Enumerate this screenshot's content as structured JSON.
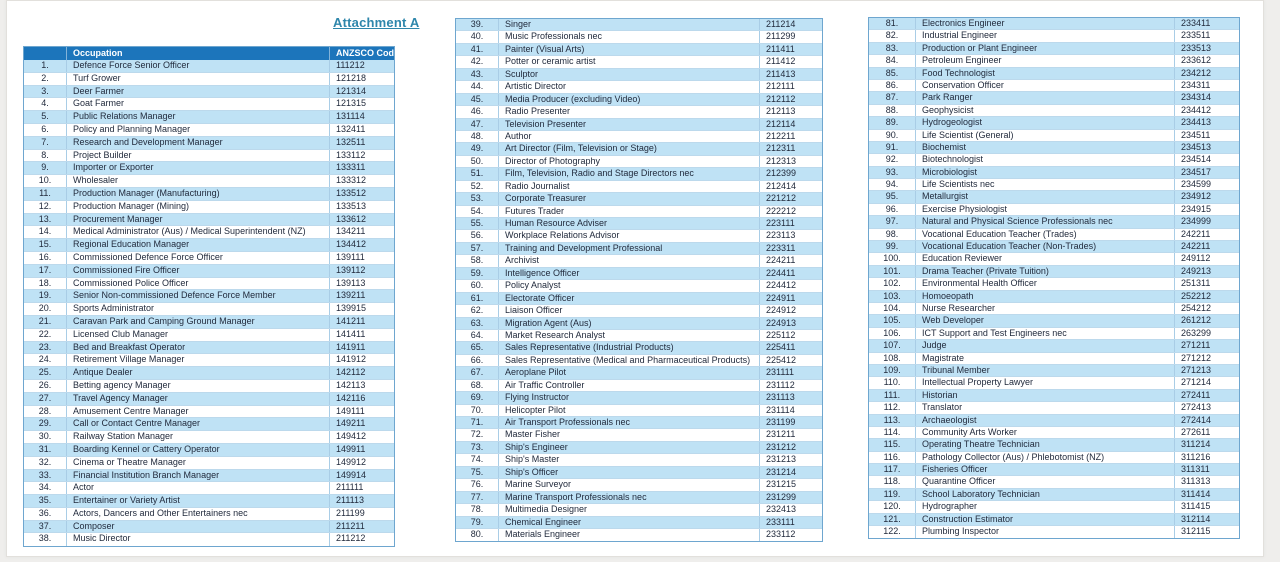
{
  "title": "Attachment A",
  "header": {
    "number": "",
    "occupation": "Occupation",
    "code": "ANZSCO Code"
  },
  "colors": {
    "header_bg": "#1c75bb",
    "row_shaded": "#bfe2f5",
    "title_text": "#2e86ab",
    "table_border": "#6ea6cf",
    "body_text": "#222b3d"
  },
  "tables": [
    {
      "has_header": true,
      "rows": [
        [
          "1.",
          "Defence Force Senior Officer",
          "111212"
        ],
        [
          "2.",
          "Turf Grower",
          "121218"
        ],
        [
          "3.",
          "Deer Farmer",
          "121314"
        ],
        [
          "4.",
          "Goat Farmer",
          "121315"
        ],
        [
          "5.",
          "Public Relations Manager",
          "131114"
        ],
        [
          "6.",
          "Policy and Planning Manager",
          "132411"
        ],
        [
          "7.",
          "Research and Development Manager",
          "132511"
        ],
        [
          "8.",
          "Project Builder",
          "133112"
        ],
        [
          "9.",
          "Importer or Exporter",
          "133311"
        ],
        [
          "10.",
          "Wholesaler",
          "133312"
        ],
        [
          "11.",
          "Production Manager (Manufacturing)",
          "133512"
        ],
        [
          "12.",
          "Production Manager (Mining)",
          "133513"
        ],
        [
          "13.",
          "Procurement Manager",
          "133612"
        ],
        [
          "14.",
          "Medical Administrator (Aus) / Medical Superintendent (NZ)",
          "134211"
        ],
        [
          "15.",
          "Regional Education Manager",
          "134412"
        ],
        [
          "16.",
          "Commissioned Defence Force Officer",
          "139111"
        ],
        [
          "17.",
          "Commissioned Fire Officer",
          "139112"
        ],
        [
          "18.",
          "Commissioned Police Officer",
          "139113"
        ],
        [
          "19.",
          "Senior Non-commissioned Defence Force Member",
          "139211"
        ],
        [
          "20.",
          "Sports Administrator",
          "139915"
        ],
        [
          "21.",
          "Caravan Park and Camping Ground Manager",
          "141211"
        ],
        [
          "22.",
          "Licensed Club Manager",
          "141411"
        ],
        [
          "23.",
          "Bed and Breakfast Operator",
          "141911"
        ],
        [
          "24.",
          "Retirement Village Manager",
          "141912"
        ],
        [
          "25.",
          "Antique Dealer",
          "142112"
        ],
        [
          "26.",
          "Betting agency Manager",
          "142113"
        ],
        [
          "27.",
          "Travel Agency Manager",
          "142116"
        ],
        [
          "28.",
          "Amusement Centre Manager",
          "149111"
        ],
        [
          "29.",
          "Call or Contact Centre Manager",
          "149211"
        ],
        [
          "30.",
          "Railway Station Manager",
          "149412"
        ],
        [
          "31.",
          "Boarding Kennel or Cattery Operator",
          "149911"
        ],
        [
          "32.",
          "Cinema or Theatre Manager",
          "149912"
        ],
        [
          "33.",
          "Financial Institution Branch Manager",
          "149914"
        ],
        [
          "34.",
          "Actor",
          "211111"
        ],
        [
          "35.",
          "Entertainer or Variety Artist",
          "211113"
        ],
        [
          "36.",
          "Actors, Dancers and Other Entertainers nec",
          "211199"
        ],
        [
          "37.",
          "Composer",
          "211211"
        ],
        [
          "38.",
          "Music Director",
          "211212"
        ]
      ]
    },
    {
      "has_header": false,
      "rows": [
        [
          "39.",
          "Singer",
          "211214"
        ],
        [
          "40.",
          "Music Professionals nec",
          "211299"
        ],
        [
          "41.",
          "Painter (Visual Arts)",
          "211411"
        ],
        [
          "42.",
          "Potter or ceramic artist",
          "211412"
        ],
        [
          "43.",
          "Sculptor",
          "211413"
        ],
        [
          "44.",
          "Artistic Director",
          "212111"
        ],
        [
          "45.",
          "Media Producer (excluding Video)",
          "212112"
        ],
        [
          "46.",
          "Radio Presenter",
          "212113"
        ],
        [
          "47.",
          "Television Presenter",
          "212114"
        ],
        [
          "48.",
          "Author",
          "212211"
        ],
        [
          "49.",
          "Art Director (Film, Television or Stage)",
          "212311"
        ],
        [
          "50.",
          "Director of Photography",
          "212313"
        ],
        [
          "51.",
          "Film, Television, Radio and Stage Directors nec",
          "212399"
        ],
        [
          "52.",
          "Radio Journalist",
          "212414"
        ],
        [
          "53.",
          "Corporate Treasurer",
          "221212"
        ],
        [
          "54.",
          "Futures Trader",
          "222212"
        ],
        [
          "55.",
          "Human Resource Adviser",
          "223111"
        ],
        [
          "56.",
          "Workplace Relations Advisor",
          "223113"
        ],
        [
          "57.",
          "Training and Development Professional",
          "223311"
        ],
        [
          "58.",
          "Archivist",
          "224211"
        ],
        [
          "59.",
          "Intelligence Officer",
          "224411"
        ],
        [
          "60.",
          "Policy Analyst",
          "224412"
        ],
        [
          "61.",
          "Electorate Officer",
          "224911"
        ],
        [
          "62.",
          "Liaison Officer",
          "224912"
        ],
        [
          "63.",
          "Migration Agent (Aus)",
          "224913"
        ],
        [
          "64.",
          "Market Research Analyst",
          "225112"
        ],
        [
          "65.",
          "Sales Representative (Industrial Products)",
          "225411"
        ],
        [
          "66.",
          "Sales Representative (Medical and Pharmaceutical Products)",
          "225412"
        ],
        [
          "67.",
          "Aeroplane Pilot",
          "231111"
        ],
        [
          "68.",
          "Air Traffic Controller",
          "231112"
        ],
        [
          "69.",
          "Flying Instructor",
          "231113"
        ],
        [
          "70.",
          "Helicopter Pilot",
          "231114"
        ],
        [
          "71.",
          "Air Transport Professionals nec",
          "231199"
        ],
        [
          "72.",
          "Master Fisher",
          "231211"
        ],
        [
          "73.",
          "Ship's Engineer",
          "231212"
        ],
        [
          "74.",
          "Ship's Master",
          "231213"
        ],
        [
          "75.",
          "Ship's Officer",
          "231214"
        ],
        [
          "76.",
          "Marine Surveyor",
          "231215"
        ],
        [
          "77.",
          "Marine Transport Professionals nec",
          "231299"
        ],
        [
          "78.",
          "Multimedia Designer",
          "232413"
        ],
        [
          "79.",
          "Chemical Engineer",
          "233111"
        ],
        [
          "80.",
          "Materials Engineer",
          "233112"
        ]
      ]
    },
    {
      "has_header": false,
      "rows": [
        [
          "81.",
          "Electronics Engineer",
          "233411"
        ],
        [
          "82.",
          "Industrial Engineer",
          "233511"
        ],
        [
          "83.",
          "Production or Plant Engineer",
          "233513"
        ],
        [
          "84.",
          "Petroleum Engineer",
          "233612"
        ],
        [
          "85.",
          "Food Technologist",
          "234212"
        ],
        [
          "86.",
          "Conservation Officer",
          "234311"
        ],
        [
          "87.",
          "Park Ranger",
          "234314"
        ],
        [
          "88.",
          "Geophysicist",
          "234412"
        ],
        [
          "89.",
          "Hydrogeologist",
          "234413"
        ],
        [
          "90.",
          "Life Scientist (General)",
          "234511"
        ],
        [
          "91.",
          "Biochemist",
          "234513"
        ],
        [
          "92.",
          "Biotechnologist",
          "234514"
        ],
        [
          "93.",
          "Microbiologist",
          "234517"
        ],
        [
          "94.",
          "Life Scientists nec",
          "234599"
        ],
        [
          "95.",
          "Metallurgist",
          "234912"
        ],
        [
          "96.",
          "Exercise Physiologist",
          "234915"
        ],
        [
          "97.",
          "Natural and Physical Science Professionals nec",
          "234999"
        ],
        [
          "98.",
          "Vocational Education Teacher (Trades)",
          "242211"
        ],
        [
          "99.",
          "Vocational Education Teacher (Non-Trades)",
          "242211"
        ],
        [
          "100.",
          "Education Reviewer",
          "249112"
        ],
        [
          "101.",
          "Drama Teacher (Private Tuition)",
          "249213"
        ],
        [
          "102.",
          "Environmental Health Officer",
          "251311"
        ],
        [
          "103.",
          "Homoeopath",
          "252212"
        ],
        [
          "104.",
          "Nurse Researcher",
          "254212"
        ],
        [
          "105.",
          "Web Developer",
          "261212"
        ],
        [
          "106.",
          "ICT Support and Test Engineers nec",
          "263299"
        ],
        [
          "107.",
          "Judge",
          "271211"
        ],
        [
          "108.",
          "Magistrate",
          "271212"
        ],
        [
          "109.",
          "Tribunal Member",
          "271213"
        ],
        [
          "110.",
          "Intellectual Property Lawyer",
          "271214"
        ],
        [
          "111.",
          "Historian",
          "272411"
        ],
        [
          "112.",
          "Translator",
          "272413"
        ],
        [
          "113.",
          "Archaeologist",
          "272414"
        ],
        [
          "114.",
          "Community Arts Worker",
          "272611"
        ],
        [
          "115.",
          "Operating Theatre Technician",
          "311214"
        ],
        [
          "116.",
          "Pathology Collector (Aus) / Phlebotomist (NZ)",
          "311216"
        ],
        [
          "117.",
          "Fisheries Officer",
          "311311"
        ],
        [
          "118.",
          "Quarantine Officer",
          "311313"
        ],
        [
          "119.",
          "School Laboratory Technician",
          "311414"
        ],
        [
          "120.",
          "Hydrographer",
          "311415"
        ],
        [
          "121.",
          "Construction Estimator",
          "312114"
        ],
        [
          "122.",
          "Plumbing Inspector",
          "312115"
        ]
      ]
    }
  ]
}
